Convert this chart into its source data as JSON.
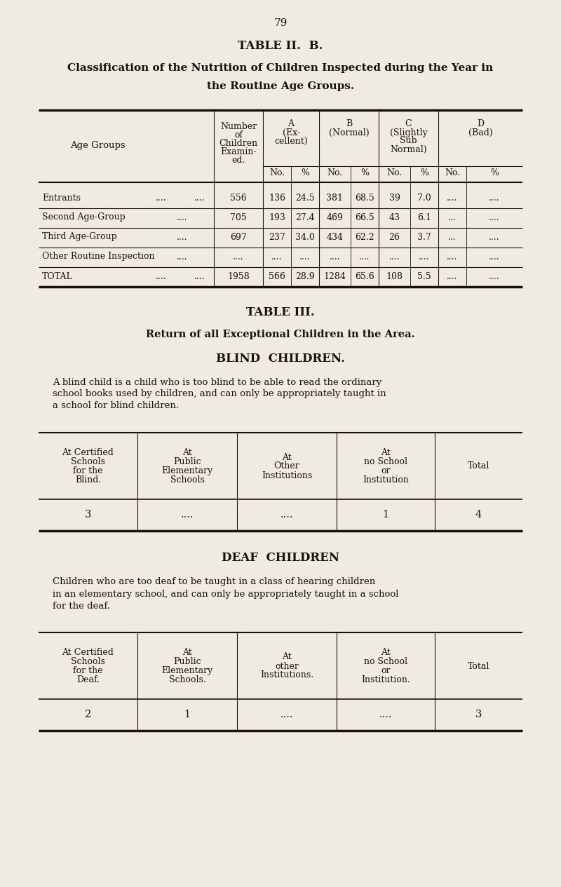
{
  "bg_color": "#f0ebe0",
  "page_number": "79",
  "table2b_title": "TABLE II.  B.",
  "table2b_subtitle1": "Classification of the Nutrition of Children Inspected during the Year in",
  "table2b_subtitle2": "the Routine Age Groups.",
  "table3_title": "TABLE III.",
  "table3_subtitle1": "Return of all Exceptional Children in the Area.",
  "blind_title": "BLIND  CHILDREN.",
  "blind_desc_lines": [
    "A blind child is a child who is too blind to be able to read the ordinary",
    "school books used by children, and can only be appropriately taught in",
    "a school for blind children."
  ],
  "blind_col_headers": [
    "At Certified\nSchools\nfor the\nBlind.",
    "At\nPublic\nElementary\nSchools",
    "At\nOther\nInstitutions",
    "At\nno School\nor\nInstitution",
    "Total"
  ],
  "blind_data": [
    "3",
    "....",
    "....",
    "1",
    "4"
  ],
  "deaf_title": "DEAF  CHILDREN",
  "deaf_desc_lines": [
    "Children who are too deaf to be taught in a class of hearing children",
    "in an elementary school, and can only be appropriately taught in a school",
    "for the deaf."
  ],
  "deaf_col_headers": [
    "At Certified\nSchools\nfor the\nDeaf.",
    "At\nPublic\nElementary\nSchools.",
    "At\nother\nInstitutions.",
    "At\nno School\nor\nInstitution.",
    "Total"
  ],
  "deaf_data": [
    "2",
    "1",
    "....",
    "....",
    "3"
  ],
  "row_labels": [
    "Entrants",
    "Second Age-Group",
    "Third Age-Group",
    "Other Routine Inspection",
    "TOTAL"
  ],
  "row_dots1": [
    "....",
    "....",
    "....",
    "....",
    "...."
  ],
  "row_dots2": [
    "....",
    "",
    "",
    "",
    "...."
  ],
  "row_num_children": [
    "556",
    "705",
    "697",
    "",
    "1958"
  ],
  "row_A_No": [
    "136",
    "193",
    "237",
    "",
    "566"
  ],
  "row_A_pct": [
    "24.5",
    "27.4",
    "34.0",
    "",
    "28.9"
  ],
  "row_B_No": [
    "381",
    "469",
    "434",
    "",
    "1284"
  ],
  "row_B_pct": [
    "68.5",
    "66.5",
    "62.2",
    "",
    "65.6"
  ],
  "row_C_No": [
    "39",
    "43",
    "26",
    "",
    "108"
  ],
  "row_C_pct": [
    "7.0",
    "6.1",
    "3.7",
    "",
    "5.5"
  ],
  "row_D_No": [
    "....",
    "...",
    "...",
    "",
    "...."
  ],
  "row_D_pct": [
    "....",
    "....",
    "....",
    "",
    "...."
  ]
}
